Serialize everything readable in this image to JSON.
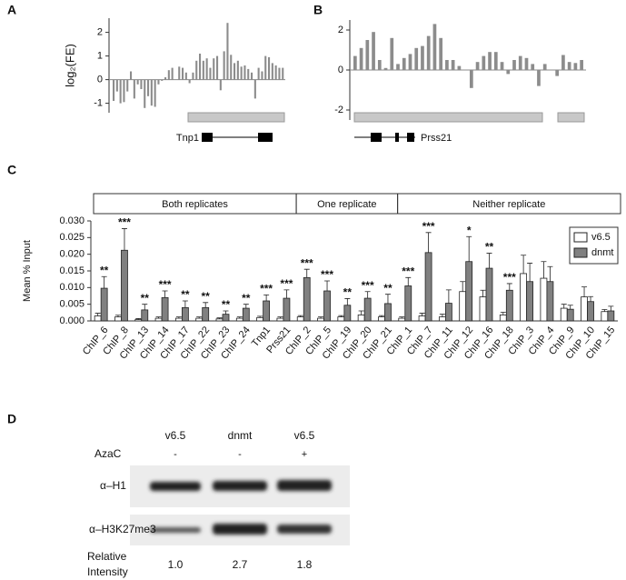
{
  "chart_data": [
    {
      "type": "bar",
      "panel_label": "A",
      "ylabel": "log₂(FE)",
      "color": "#8c8c8c",
      "ylim": [
        -1.4,
        2.6
      ],
      "yticks": [
        -1,
        0,
        1,
        2
      ],
      "gene_label": "Tnp1",
      "values": [
        -0.9,
        -0.5,
        -1.0,
        -0.95,
        -0.5,
        0.35,
        -0.8,
        -0.2,
        -0.4,
        -1.2,
        -0.7,
        -1.1,
        -1.15,
        -0.2,
        -0.05,
        0.1,
        0.4,
        0.5,
        0.0,
        0.55,
        0.5,
        0.3,
        -0.15,
        0.3,
        0.8,
        1.1,
        0.8,
        0.9,
        0.5,
        0.9,
        1.0,
        -0.45,
        1.2,
        2.4,
        1.05,
        0.7,
        0.8,
        0.55,
        0.6,
        0.45,
        0.3,
        -0.8,
        0.5,
        0.35,
        1.0,
        0.95,
        0.7,
        0.6,
        0.5,
        0.5
      ]
    },
    {
      "type": "bar",
      "panel_label": "B",
      "color": "#8c8c8c",
      "ylim": [
        -2.5,
        2.5
      ],
      "yticks": [
        -2,
        0,
        2
      ],
      "gene_label": "Prss21",
      "values": [
        0.7,
        1.1,
        1.5,
        1.9,
        0.5,
        0.1,
        1.6,
        0.3,
        0.6,
        0.8,
        1.1,
        1.2,
        1.7,
        2.3,
        1.6,
        0.5,
        0.5,
        0.2,
        0.0,
        -0.9,
        0.4,
        0.7,
        0.9,
        0.9,
        0.4,
        -0.2,
        0.5,
        0.7,
        0.6,
        0.3,
        -0.8,
        0.3,
        0.0,
        -0.3,
        0.75,
        0.4,
        0.35,
        0.5
      ]
    },
    {
      "type": "grouped_bar",
      "panel_label": "C",
      "ylabel": "Mean % Input",
      "legend": "upper right",
      "groups": [
        {
          "label": "Both replicates",
          "categories": [
            "ChIP_6",
            "ChIP_8",
            "ChIP_13",
            "ChIP_14",
            "ChIP_17",
            "ChIP_22",
            "ChIP_23",
            "ChIP_24",
            "Tnp1",
            "Prss21"
          ]
        },
        {
          "label": "One replicate",
          "categories": [
            "ChIP_2",
            "ChIP_5",
            "ChIP_19",
            "ChIP_20",
            "ChIP_21"
          ]
        },
        {
          "label": "Neither replicate",
          "categories": [
            "ChIP_1",
            "ChIP_7",
            "ChIP_11",
            "ChIP_12",
            "ChIP_16",
            "ChIP_18",
            "ChIP_3",
            "ChIP_4",
            "ChIP_9",
            "ChIP_10",
            "ChIP_15"
          ]
        }
      ],
      "series": [
        {
          "name": "v6.5",
          "color": "#ffffff",
          "values": [
            0.0015,
            0.0012,
            0.0004,
            0.0008,
            0.0008,
            0.0008,
            0.0006,
            0.0008,
            0.001,
            0.0008,
            0.0012,
            0.0008,
            0.0012,
            0.0018,
            0.0012,
            0.0008,
            0.0015,
            0.0012,
            0.0088,
            0.0072,
            0.0018,
            0.0142,
            0.0128,
            0.0038,
            0.0072,
            0.0028
          ],
          "errors": [
            0.0008,
            0.0005,
            0.0003,
            0.0004,
            0.0004,
            0.0004,
            0.0003,
            0.0004,
            0.0004,
            0.0004,
            0.0004,
            0.0004,
            0.0004,
            0.0012,
            0.0004,
            0.0004,
            0.0008,
            0.0008,
            0.003,
            0.002,
            0.0008,
            0.0055,
            0.005,
            0.0012,
            0.003,
            0.0006
          ]
        },
        {
          "name": "dnmt",
          "color": "#808080",
          "values": [
            0.0098,
            0.0212,
            0.0033,
            0.007,
            0.004,
            0.004,
            0.002,
            0.0038,
            0.006,
            0.0068,
            0.013,
            0.009,
            0.0047,
            0.0068,
            0.0052,
            0.0105,
            0.0205,
            0.0053,
            0.0178,
            0.0158,
            0.0092,
            0.0118,
            0.0118,
            0.0035,
            0.0058,
            0.003
          ],
          "errors": [
            0.0035,
            0.0065,
            0.0017,
            0.002,
            0.002,
            0.0015,
            0.001,
            0.0012,
            0.0018,
            0.0025,
            0.0025,
            0.003,
            0.002,
            0.002,
            0.0028,
            0.0025,
            0.006,
            0.004,
            0.0075,
            0.0045,
            0.002,
            0.0055,
            0.0045,
            0.0012,
            0.0015,
            0.0014
          ]
        }
      ],
      "significance": [
        "**",
        "***",
        "**",
        "***",
        "**",
        "**",
        "**",
        "**",
        "***",
        "***",
        "***",
        "***",
        "**",
        "***",
        "**",
        "***",
        "***",
        null,
        "*",
        "**",
        "***",
        null,
        null,
        null,
        null,
        null
      ],
      "ylim": [
        0,
        0.03
      ],
      "yticks": [
        {
          "value": 0,
          "label": "0.000"
        },
        {
          "value": 0.005,
          "label": "0.005"
        },
        {
          "value": 0.01,
          "label": "0.010"
        },
        {
          "value": 0.015,
          "label": "0.015"
        },
        {
          "value": 0.02,
          "label": "0.020"
        },
        {
          "value": 0.025,
          "label": "0.025"
        },
        {
          "value": 0.03,
          "label": "0.030"
        }
      ]
    }
  ],
  "blot": {
    "panel_label": "D",
    "lanes": [
      "v6.5",
      "dnmt",
      "v6.5"
    ],
    "treatment_label": "AzaC",
    "treatment": [
      "-",
      "-",
      "+"
    ],
    "rows": [
      "α–H1",
      "α–H3K27me3"
    ],
    "intensity_label": "Relative Intensity",
    "intensity": [
      "1.0",
      "2.7",
      "1.8"
    ]
  }
}
